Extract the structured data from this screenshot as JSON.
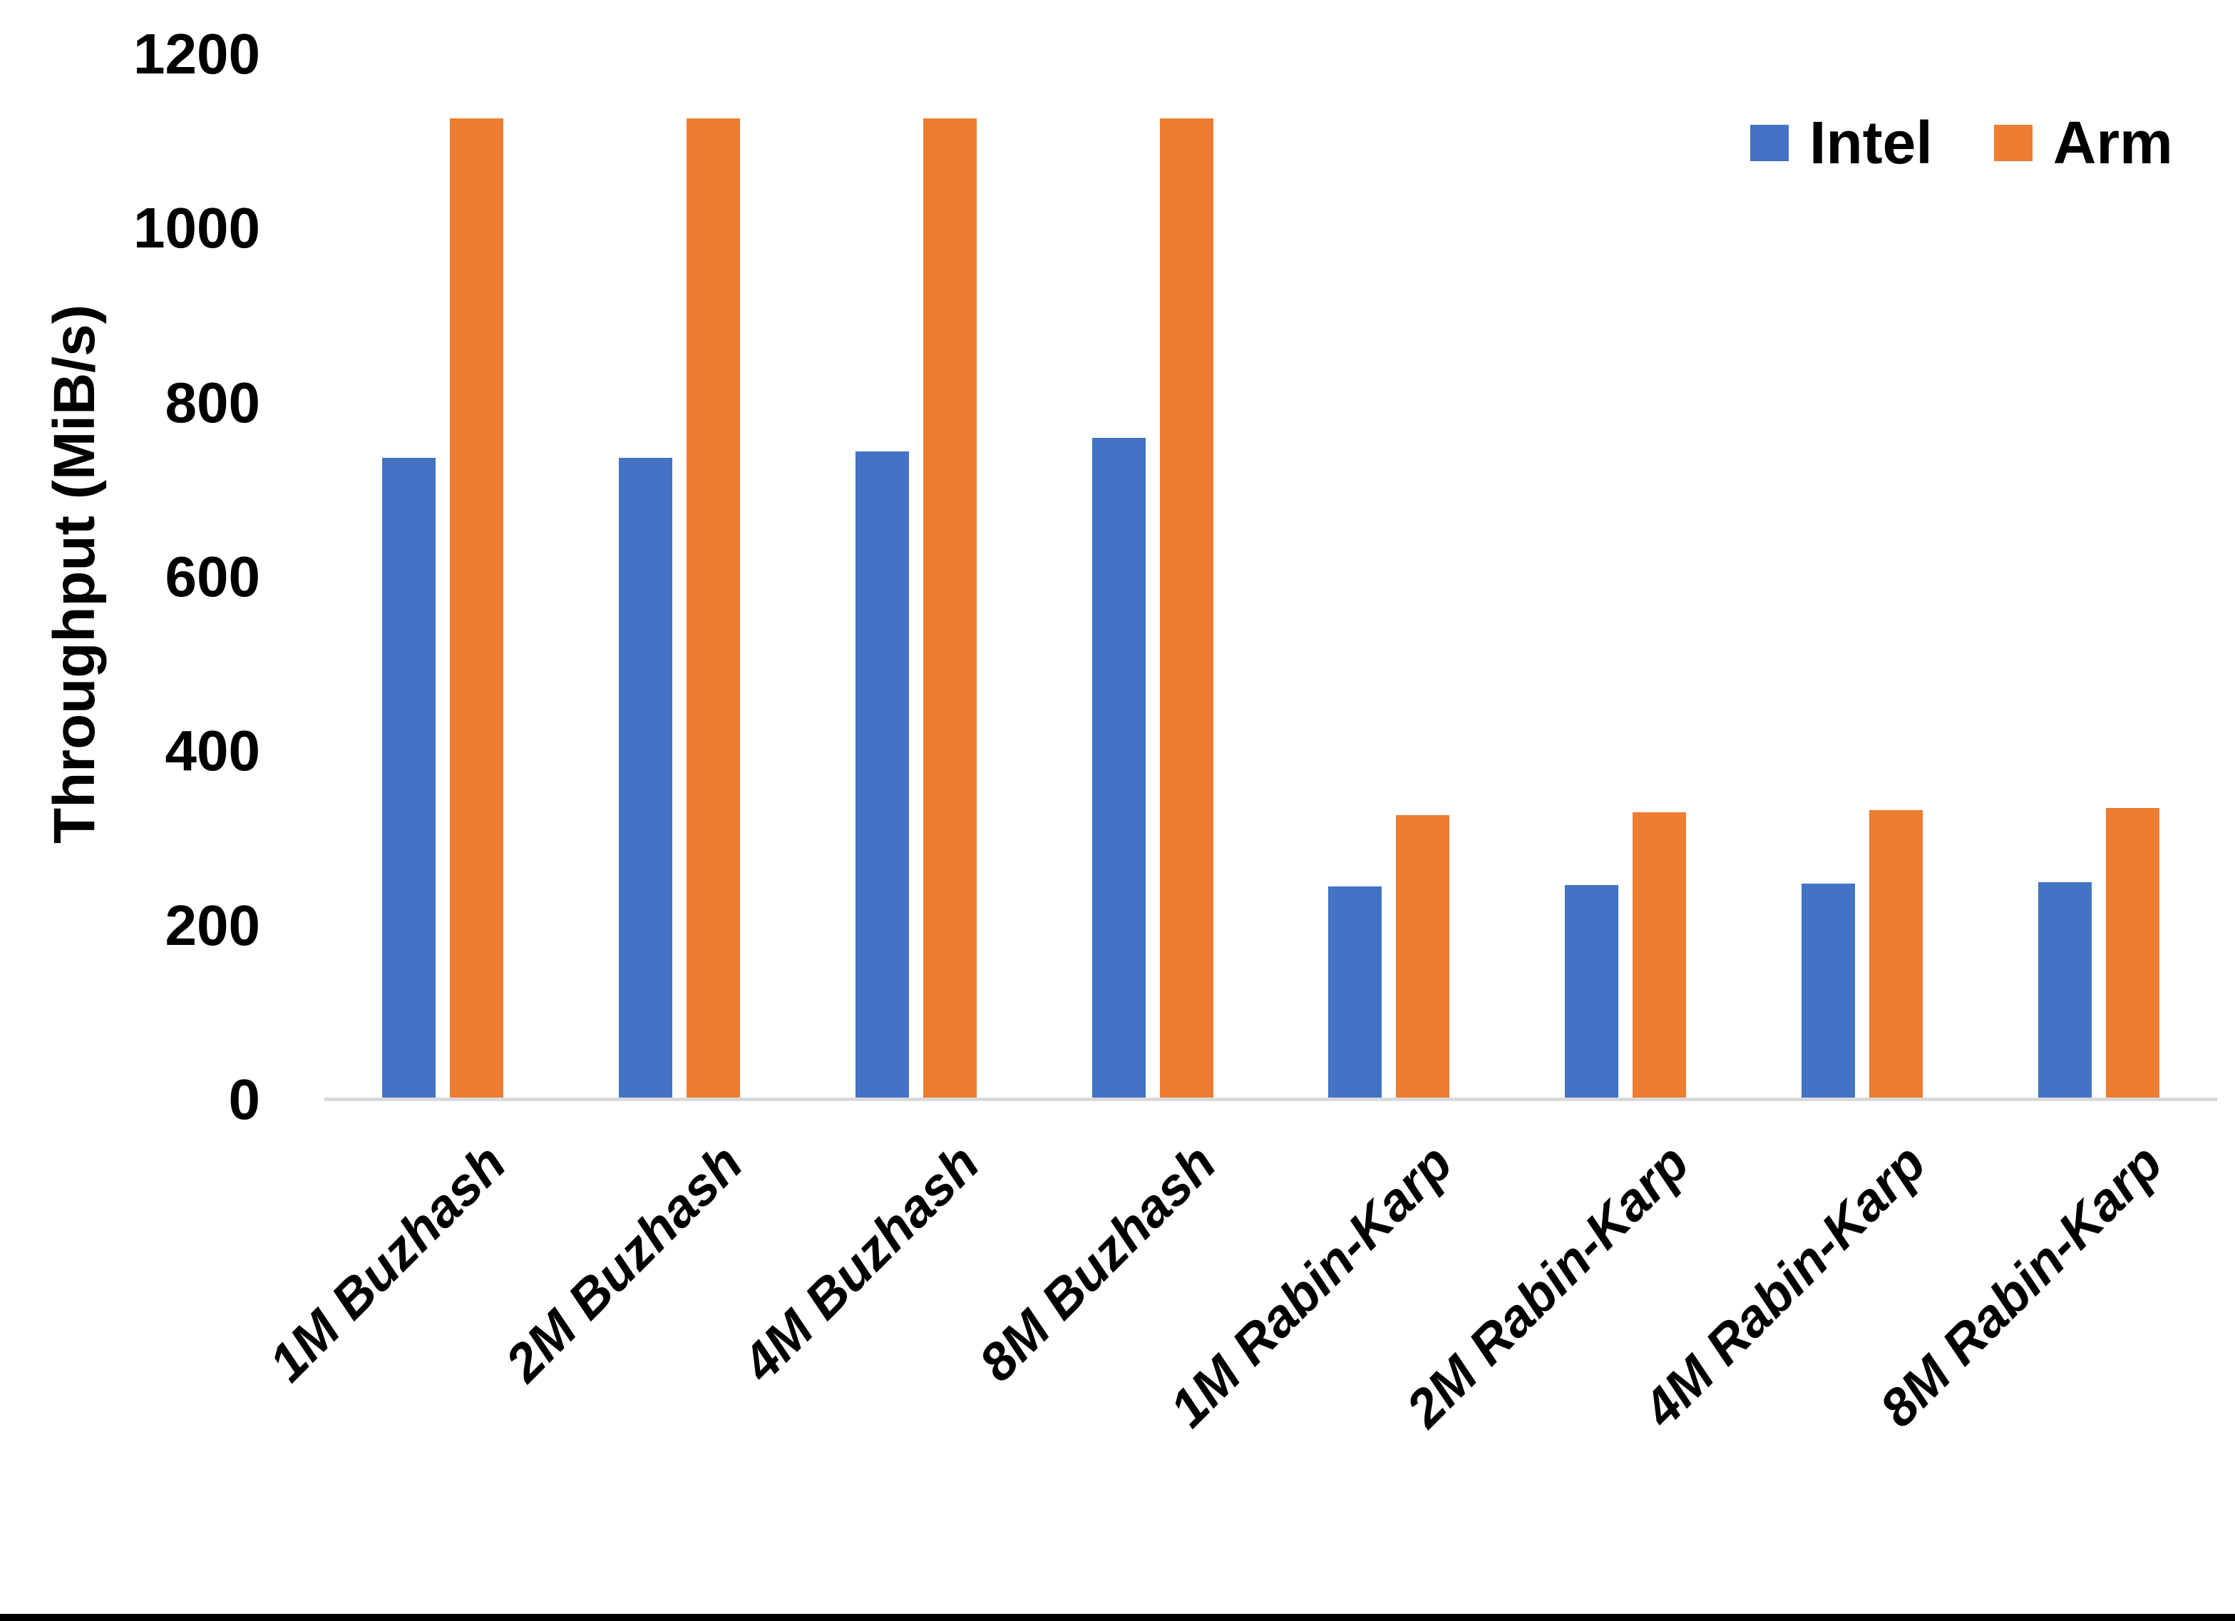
{
  "legend": {
    "items": [
      {
        "label": "Intel",
        "color": "#4472C4"
      },
      {
        "label": "Arm",
        "color": "#ED7D31"
      }
    ]
  },
  "chart_data": {
    "type": "bar",
    "title": "",
    "xlabel": "",
    "ylabel": "Throughput (MiB/s)",
    "ylim": [
      0,
      1200
    ],
    "yticks": [
      0,
      200,
      400,
      600,
      800,
      1000,
      1200
    ],
    "grid": false,
    "legend_position": "top-right",
    "categories": [
      "1M Buzhash",
      "2M Buzhash",
      "4M Buzhash",
      "8M Buzhash",
      "1M Rabin-Karp",
      "2M Rabin-Karp",
      "4M Rabin-Karp",
      "8M Rabin-Karp"
    ],
    "series": [
      {
        "name": "Intel",
        "color": "#4472C4",
        "values": [
          737,
          737,
          744,
          760,
          245,
          246,
          248,
          250
        ]
      },
      {
        "name": "Arm",
        "color": "#ED7D31",
        "values": [
          1126,
          1126,
          1126,
          1126,
          327,
          330,
          332,
          335
        ]
      }
    ],
    "axis_line_color": "#D9D9D9",
    "text_color": "#000000"
  }
}
